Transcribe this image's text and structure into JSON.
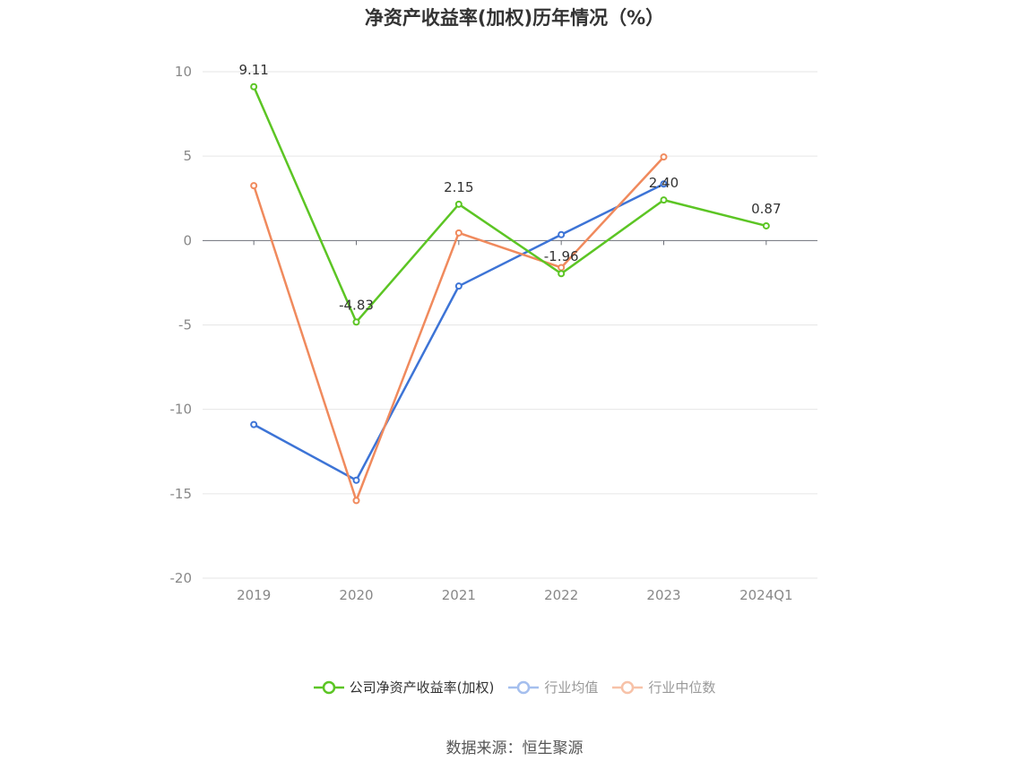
{
  "title": "净资产收益率(加权)历年情况（%）",
  "source": "数据来源：恒生聚源",
  "chart_data": {
    "type": "line",
    "categories": [
      "2019",
      "2020",
      "2021",
      "2022",
      "2023",
      "2024Q1"
    ],
    "ylim": [
      -20,
      10
    ],
    "yticks": [
      10,
      5,
      0,
      -5,
      -10,
      -15,
      -20
    ],
    "grid": true,
    "legend_position": "bottom",
    "series": [
      {
        "name": "公司净资产收益率(加权)",
        "color": "#5cc524",
        "values": [
          9.11,
          -4.83,
          2.15,
          -1.96,
          2.4,
          0.87
        ],
        "labels": [
          "9.11",
          "-4.83",
          "2.15",
          "-1.96",
          "2.40",
          "0.87"
        ]
      },
      {
        "name": "行业均值",
        "color": "#3d74d6",
        "values": [
          -10.9,
          -14.2,
          -2.7,
          0.35,
          3.35,
          null
        ]
      },
      {
        "name": "行业中位数",
        "color": "#f08a5d",
        "values": [
          3.25,
          -15.4,
          0.45,
          -1.6,
          4.95,
          null
        ]
      }
    ]
  },
  "legend_colors": {
    "公司净资产收益率(加权)": "#5cc524",
    "行业均值": "#a5bfee",
    "行业中位数": "#f7c2a8"
  },
  "legend_text_colors": [
    "#333333",
    "#999999",
    "#999999"
  ]
}
